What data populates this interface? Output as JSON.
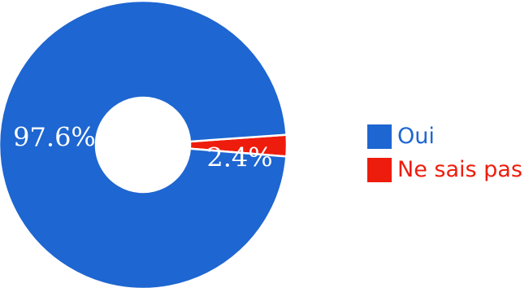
{
  "chart_data": {
    "type": "pie",
    "variant": "donut",
    "title": "",
    "legend_position": "right",
    "slices": [
      {
        "label": "Oui",
        "value": 97.6,
        "display": "97.6%",
        "color": "#1e66d1",
        "label_color": "#1e66d1"
      },
      {
        "label": "Ne sais pas",
        "value": 2.4,
        "display": "2.4%",
        "color": "#ee1c0c",
        "label_color": "#ee1c0c"
      }
    ]
  }
}
